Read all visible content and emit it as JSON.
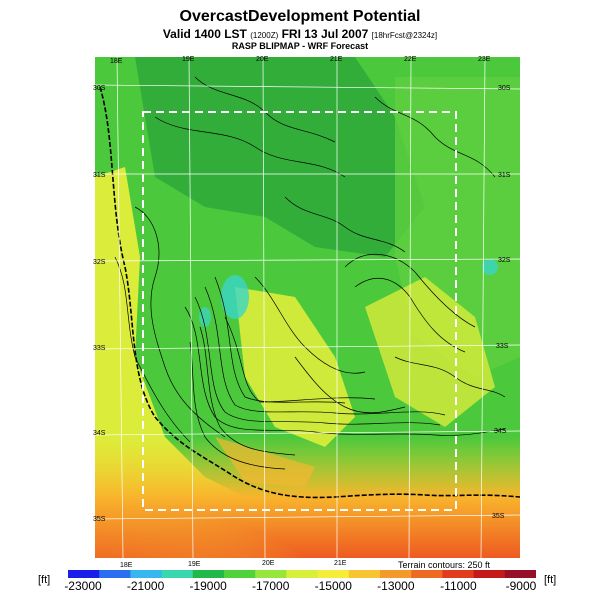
{
  "title": "OvercastDevelopment Potential",
  "subtitle": {
    "main": "Valid 1400 LST",
    "utc": "(1200Z)",
    "date": "FRI 13 Jul 2007",
    "fcst": "[18hrFcst@2324z]"
  },
  "forecast_label": "RASP BLIPMAP - WRF Forecast",
  "lon_labels_top": [
    "18E",
    "19E",
    "20E",
    "21E",
    "22E",
    "23E"
  ],
  "lon_labels_bottom": [
    "18E",
    "19E",
    "20E",
    "21E"
  ],
  "lat_labels_left": [
    "30S",
    "31S",
    "32S",
    "33S",
    "34S",
    "35S"
  ],
  "lat_labels_right": [
    "30S",
    "31S",
    "32S",
    "33S",
    "34S",
    "35S"
  ],
  "contour_note": "Terrain contours: 250 ft",
  "colorbar": {
    "unit_left": "[ft]",
    "unit_right": "[ft]",
    "ticks": [
      "-23000",
      "-21000",
      "-19000",
      "-17000",
      "-15000",
      "-13000",
      "-11000",
      "-9000"
    ],
    "colors": [
      "#1a1ee8",
      "#2b6ef0",
      "#38b6f0",
      "#3ad6b0",
      "#22b84a",
      "#4fd23a",
      "#96e63c",
      "#d6f03c",
      "#f6ec3a",
      "#f8c432",
      "#f49a2a",
      "#ee6a22",
      "#e23c1e",
      "#c41a1a",
      "#96102a"
    ]
  }
}
